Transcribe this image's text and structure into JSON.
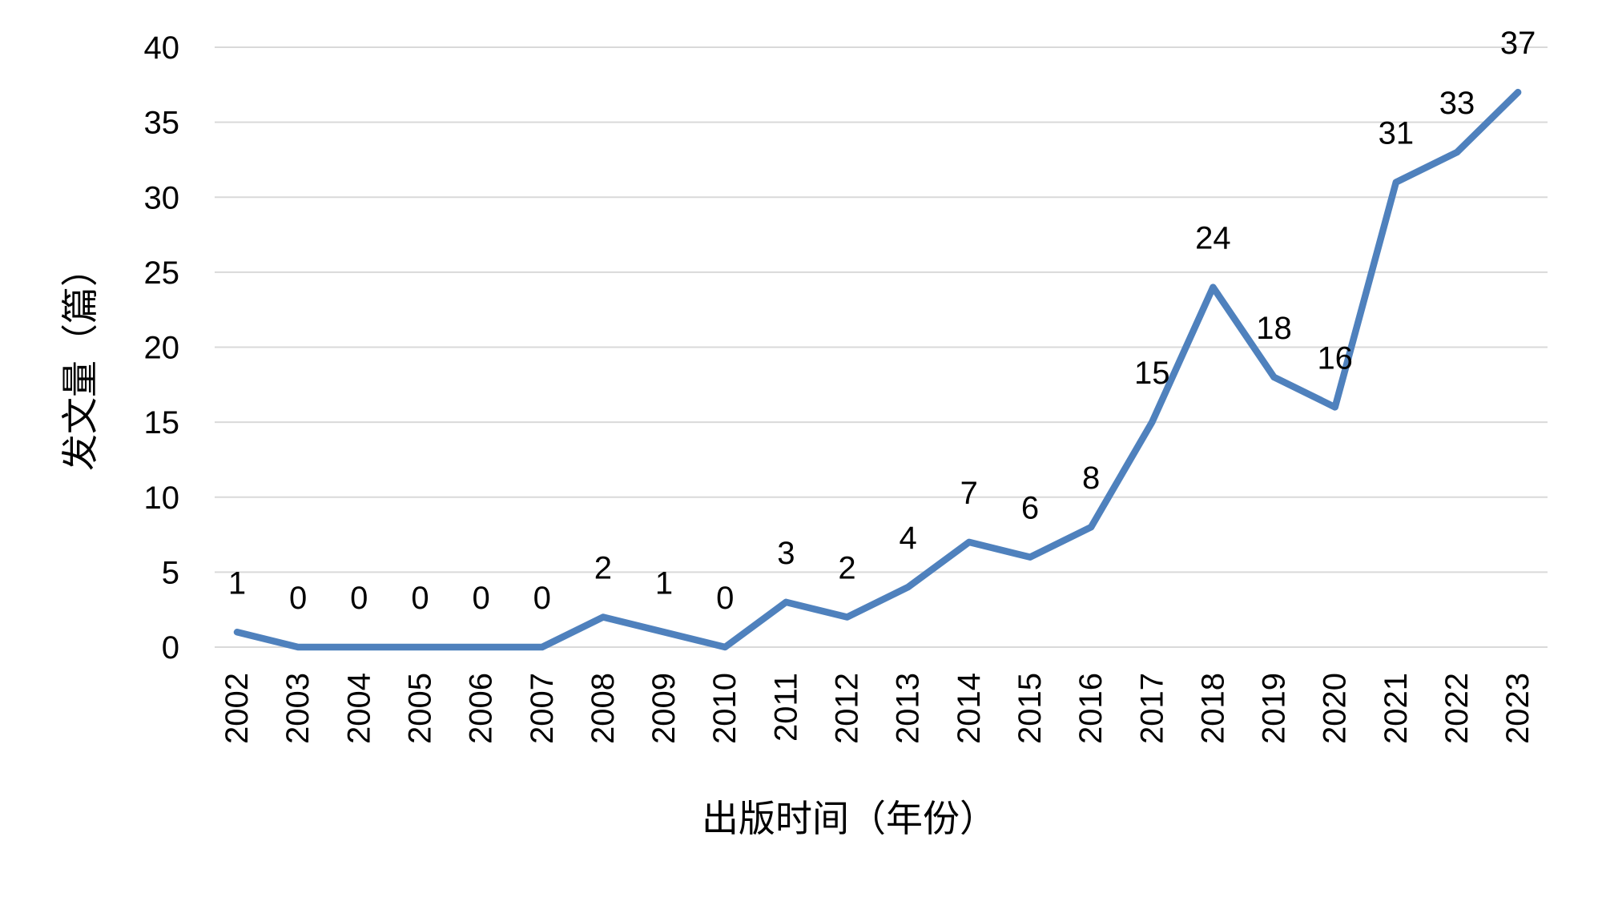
{
  "chart_data": {
    "type": "line",
    "title": "",
    "xlabel": "出版时间（年份）",
    "ylabel": "发文量（篇）",
    "categories": [
      "2002",
      "2003",
      "2004",
      "2005",
      "2006",
      "2007",
      "2008",
      "2009",
      "2010",
      "2011",
      "2012",
      "2013",
      "2014",
      "2015",
      "2016",
      "2017",
      "2018",
      "2019",
      "2020",
      "2021",
      "2022",
      "2023"
    ],
    "values": [
      1,
      0,
      0,
      0,
      0,
      0,
      2,
      1,
      0,
      3,
      2,
      4,
      7,
      6,
      8,
      15,
      24,
      18,
      16,
      31,
      33,
      37
    ],
    "data_labels": [
      "1",
      "0",
      "0",
      "0",
      "0",
      "0",
      "2",
      "1",
      "0",
      "3",
      "2",
      "4",
      "7",
      "6",
      "8",
      "15",
      "24",
      "18",
      "16",
      "31",
      "33",
      "37"
    ],
    "yticks": [
      0,
      5,
      10,
      15,
      20,
      25,
      30,
      35,
      40
    ],
    "ylim": [
      0,
      40
    ],
    "grid": true,
    "legend": "none",
    "line_color": "#4F81BD",
    "grid_color": "#D9D9D9",
    "text_color": "#000000"
  }
}
